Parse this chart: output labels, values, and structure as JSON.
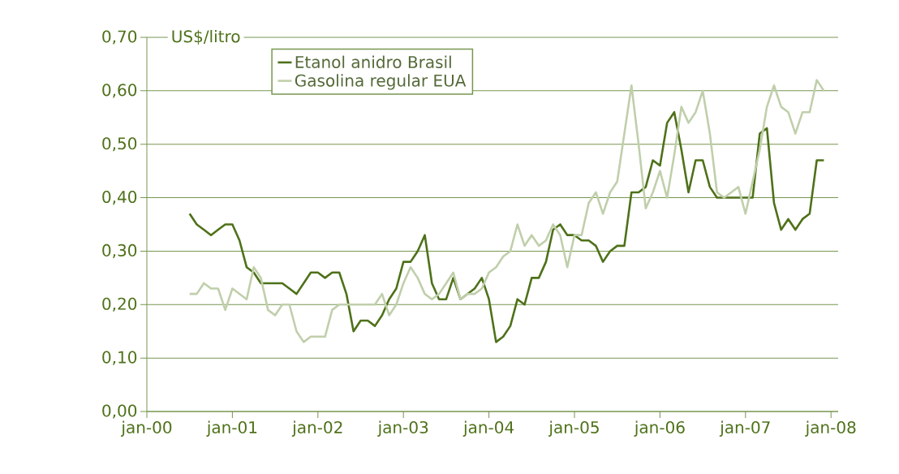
{
  "chart_data": {
    "type": "line",
    "ylabel": "US$/litro",
    "x": [
      "2000-07",
      "2000-08",
      "2000-09",
      "2000-10",
      "2000-11",
      "2000-12",
      "2001-01",
      "2001-02",
      "2001-03",
      "2001-04",
      "2001-05",
      "2001-06",
      "2001-07",
      "2001-08",
      "2001-09",
      "2001-10",
      "2001-11",
      "2001-12",
      "2002-01",
      "2002-02",
      "2002-03",
      "2002-04",
      "2002-05",
      "2002-06",
      "2002-07",
      "2002-08",
      "2002-09",
      "2002-10",
      "2002-11",
      "2002-12",
      "2003-01",
      "2003-02",
      "2003-03",
      "2003-04",
      "2003-05",
      "2003-06",
      "2003-07",
      "2003-08",
      "2003-09",
      "2003-10",
      "2003-11",
      "2003-12",
      "2004-01",
      "2004-02",
      "2004-03",
      "2004-04",
      "2004-05",
      "2004-06",
      "2004-07",
      "2004-08",
      "2004-09",
      "2004-10",
      "2004-11",
      "2004-12",
      "2005-01",
      "2005-02",
      "2005-03",
      "2005-04",
      "2005-05",
      "2005-06",
      "2005-07",
      "2005-08",
      "2005-09",
      "2005-10",
      "2005-11",
      "2005-12",
      "2006-01",
      "2006-02",
      "2006-03",
      "2006-04",
      "2006-05",
      "2006-06",
      "2006-07",
      "2006-08",
      "2006-09",
      "2006-10",
      "2006-11",
      "2006-12",
      "2007-01",
      "2007-02",
      "2007-03",
      "2007-04",
      "2007-05",
      "2007-06",
      "2007-07",
      "2007-08",
      "2007-09",
      "2007-10",
      "2007-11",
      "2007-12"
    ],
    "series": [
      {
        "name": "Etanol anidro Brasil",
        "color": "#4e7119",
        "values": [
          0.37,
          0.35,
          0.34,
          0.33,
          0.34,
          0.35,
          0.35,
          0.32,
          0.27,
          0.26,
          0.24,
          0.24,
          0.24,
          0.24,
          0.23,
          0.22,
          0.24,
          0.26,
          0.26,
          0.25,
          0.26,
          0.26,
          0.22,
          0.15,
          0.17,
          0.17,
          0.16,
          0.18,
          0.21,
          0.23,
          0.28,
          0.28,
          0.3,
          0.33,
          0.24,
          0.21,
          0.21,
          0.25,
          0.21,
          0.22,
          0.23,
          0.25,
          0.21,
          0.13,
          0.14,
          0.16,
          0.21,
          0.2,
          0.25,
          0.25,
          0.28,
          0.34,
          0.35,
          0.33,
          0.33,
          0.32,
          0.32,
          0.31,
          0.28,
          0.3,
          0.31,
          0.31,
          0.41,
          0.41,
          0.42,
          0.47,
          0.46,
          0.54,
          0.56,
          0.49,
          0.41,
          0.47,
          0.47,
          0.42,
          0.4,
          0.4,
          0.4,
          0.4,
          0.4,
          0.4,
          0.52,
          0.53,
          0.39,
          0.34,
          0.36,
          0.34,
          0.36,
          0.37,
          0.47,
          0.47
        ]
      },
      {
        "name": "Gasolina regular EUA",
        "color": "#c0cfab",
        "values": [
          0.22,
          0.22,
          0.24,
          0.23,
          0.23,
          0.19,
          0.23,
          0.22,
          0.21,
          0.27,
          0.25,
          0.19,
          0.18,
          0.2,
          0.2,
          0.15,
          0.13,
          0.14,
          0.14,
          0.14,
          0.19,
          0.2,
          0.2,
          0.2,
          0.2,
          0.2,
          0.2,
          0.22,
          0.18,
          0.2,
          0.24,
          0.27,
          0.25,
          0.22,
          0.21,
          0.22,
          0.24,
          0.26,
          0.21,
          0.22,
          0.22,
          0.23,
          0.26,
          0.27,
          0.29,
          0.3,
          0.35,
          0.31,
          0.33,
          0.31,
          0.32,
          0.35,
          0.33,
          0.27,
          0.33,
          0.33,
          0.39,
          0.41,
          0.37,
          0.41,
          0.43,
          0.52,
          0.61,
          0.5,
          0.38,
          0.41,
          0.45,
          0.4,
          0.48,
          0.57,
          0.54,
          0.56,
          0.6,
          0.52,
          0.41,
          0.4,
          0.41,
          0.42,
          0.37,
          0.43,
          0.49,
          0.57,
          0.61,
          0.57,
          0.56,
          0.52,
          0.56,
          0.56,
          0.62,
          0.6
        ]
      }
    ],
    "xlim": [
      "2000-01",
      "2008-02"
    ],
    "xticks": [
      {
        "value": "2000-01",
        "label": "jan-00"
      },
      {
        "value": "2001-01",
        "label": "jan-01"
      },
      {
        "value": "2002-01",
        "label": "jan-02"
      },
      {
        "value": "2003-01",
        "label": "jan-03"
      },
      {
        "value": "2004-01",
        "label": "jan-04"
      },
      {
        "value": "2005-01",
        "label": "jan-05"
      },
      {
        "value": "2006-01",
        "label": "jan-06"
      },
      {
        "value": "2007-01",
        "label": "jan-07"
      },
      {
        "value": "2008-01",
        "label": "jan-08"
      }
    ],
    "ylim": [
      0,
      0.7
    ],
    "yticks": [
      {
        "value": 0,
        "label": "0,00"
      },
      {
        "value": 0.1,
        "label": "0,10"
      },
      {
        "value": 0.2,
        "label": "0,20"
      },
      {
        "value": 0.3,
        "label": "0,30"
      },
      {
        "value": 0.4,
        "label": "0,40"
      },
      {
        "value": 0.5,
        "label": "0,50"
      },
      {
        "value": 0.6,
        "label": "0,60"
      },
      {
        "value": 0.7,
        "label": "0,70"
      }
    ],
    "grid": "y",
    "legend": "top left",
    "marker": "none",
    "line_style": "solid"
  }
}
